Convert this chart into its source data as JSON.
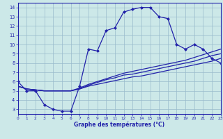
{
  "hours": [
    0,
    1,
    2,
    3,
    4,
    5,
    6,
    7,
    8,
    9,
    10,
    11,
    12,
    13,
    14,
    15,
    16,
    17,
    18,
    19,
    20,
    21,
    22,
    23
  ],
  "temp": [
    6.0,
    5.0,
    5.0,
    3.5,
    3.0,
    2.8,
    2.8,
    5.5,
    9.5,
    9.3,
    11.5,
    11.8,
    13.5,
    13.8,
    14.0,
    14.0,
    13.0,
    12.8,
    10.0,
    9.5,
    10.0,
    9.5,
    8.5,
    8.0
  ],
  "line1": [
    5.5,
    5.2,
    5.1,
    5.0,
    5.0,
    5.0,
    5.0,
    5.2,
    5.5,
    5.7,
    5.9,
    6.1,
    6.3,
    6.5,
    6.6,
    6.8,
    7.0,
    7.2,
    7.4,
    7.6,
    7.8,
    8.0,
    8.2,
    8.5
  ],
  "line2": [
    5.5,
    5.2,
    5.1,
    5.0,
    5.0,
    5.0,
    5.0,
    5.2,
    5.6,
    5.9,
    6.2,
    6.4,
    6.7,
    6.8,
    7.0,
    7.2,
    7.4,
    7.6,
    7.8,
    8.0,
    8.2,
    8.5,
    8.8,
    9.0
  ],
  "line3": [
    5.5,
    5.2,
    5.1,
    5.0,
    5.0,
    5.0,
    5.0,
    5.3,
    5.7,
    6.0,
    6.3,
    6.6,
    6.9,
    7.1,
    7.3,
    7.5,
    7.7,
    7.9,
    8.1,
    8.3,
    8.6,
    8.9,
    9.2,
    9.5
  ],
  "line_color": "#2222aa",
  "bg_color": "#cce8e8",
  "grid_color": "#99bbcc",
  "xlabel": "Graphe des températures (°C)",
  "ylim": [
    2.5,
    14.5
  ],
  "xlim": [
    0,
    23
  ],
  "yticks": [
    3,
    4,
    5,
    6,
    7,
    8,
    9,
    10,
    11,
    12,
    13,
    14
  ],
  "xticks": [
    0,
    1,
    2,
    3,
    4,
    5,
    6,
    7,
    8,
    9,
    10,
    11,
    12,
    13,
    14,
    15,
    16,
    17,
    18,
    19,
    20,
    21,
    22,
    23
  ]
}
